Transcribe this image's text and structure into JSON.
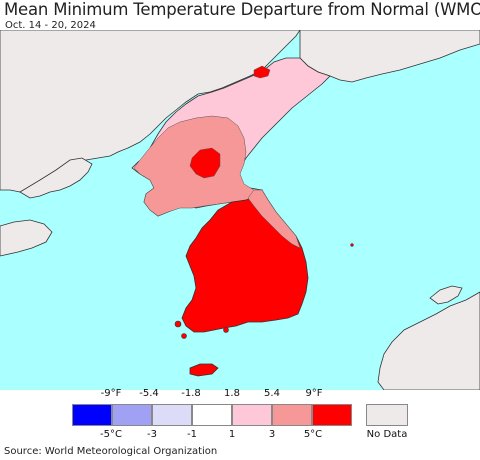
{
  "header": {
    "title": "Mean Minimum Temperature Departure from Normal (WMO)",
    "date_range": "Oct. 14 - 20, 2024"
  },
  "legend": {
    "fahrenheit_labels": [
      "-9°F",
      "-5.4",
      "-1.8",
      "1.8",
      "5.4",
      "9°F"
    ],
    "celsius_labels": [
      "-5°C",
      "-3",
      "-1",
      "1",
      "3",
      "5°C"
    ],
    "bins": [
      {
        "color": "#0000ff"
      },
      {
        "color": "#a0a0f5"
      },
      {
        "color": "#dcdcf8"
      },
      {
        "color": "#ffffff"
      },
      {
        "color": "#ffc8d8"
      },
      {
        "color": "#f79898"
      },
      {
        "color": "#ff0000"
      }
    ],
    "no_data_label": "No Data",
    "no_data_color": "#eeeaea"
  },
  "map": {
    "ocean_color": "#aaffff",
    "land_no_data_color": "#eeeaea"
  },
  "footer": {
    "source": "Source: World Meteorological Organization"
  }
}
